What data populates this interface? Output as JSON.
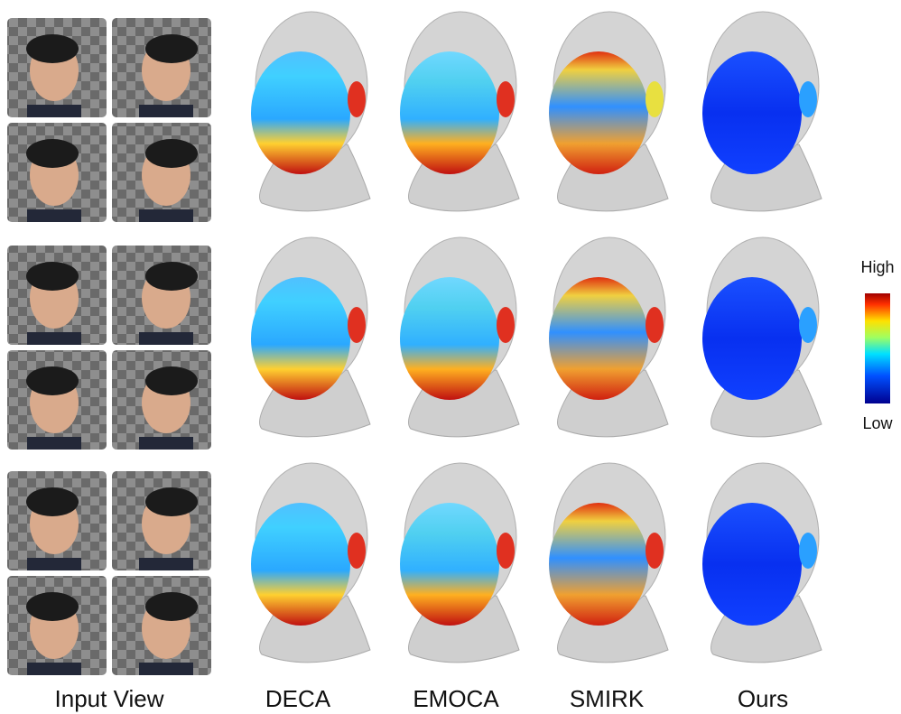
{
  "columns": {
    "input": "Input View",
    "methods": [
      "DECA",
      "EMOCA",
      "SMIRK",
      "Ours"
    ]
  },
  "colorbar": {
    "high": "High",
    "low": "Low"
  }
}
